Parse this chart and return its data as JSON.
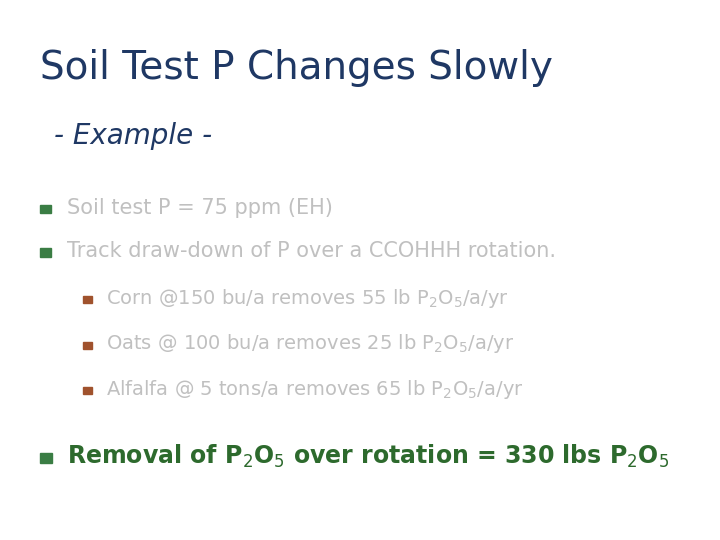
{
  "title": "Soil Test P Changes Slowly",
  "subtitle": "- Example -",
  "background_color": "#ffffff",
  "title_color": "#1f3864",
  "subtitle_color": "#1f3864",
  "bullet_color_green": "#3a7d44",
  "bullet_color_brown": "#a0522d",
  "dim_text_color": "#c0c0c0",
  "dark_green_text": "#2d6a2d",
  "bullet1": "Soil test P = 75 ppm (EH)",
  "bullet2": "Track draw-down of P over a CCOHHH rotation."
}
